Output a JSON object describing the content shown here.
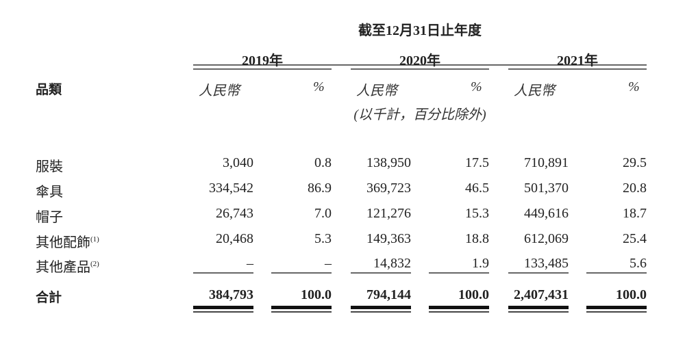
{
  "header": {
    "title": "截至12月31日止年度",
    "years": [
      "2019年",
      "2020年",
      "2021年"
    ],
    "category_label": "品類",
    "currency_label": "人民幣",
    "percent_label": "%",
    "unit_note": "(以千計，百分比除外)"
  },
  "rows": [
    {
      "label": "服裝",
      "note": "",
      "values": [
        "3,040",
        "0.8",
        "138,950",
        "17.5",
        "710,891",
        "29.5"
      ]
    },
    {
      "label": "傘具",
      "note": "",
      "values": [
        "334,542",
        "86.9",
        "369,723",
        "46.5",
        "501,370",
        "20.8"
      ]
    },
    {
      "label": "帽子",
      "note": "",
      "values": [
        "26,743",
        "7.0",
        "121,276",
        "15.3",
        "449,616",
        "18.7"
      ]
    },
    {
      "label": "其他配飾",
      "note": "(1)",
      "values": [
        "20,468",
        "5.3",
        "149,363",
        "18.8",
        "612,069",
        "25.4"
      ]
    },
    {
      "label": "其他產品",
      "note": "(2)",
      "values": [
        "–",
        "–",
        "14,832",
        "1.9",
        "133,485",
        "5.6"
      ]
    }
  ],
  "total": {
    "label": "合計",
    "values": [
      "384,793",
      "100.0",
      "794,144",
      "100.0",
      "2,407,431",
      "100.0"
    ]
  }
}
